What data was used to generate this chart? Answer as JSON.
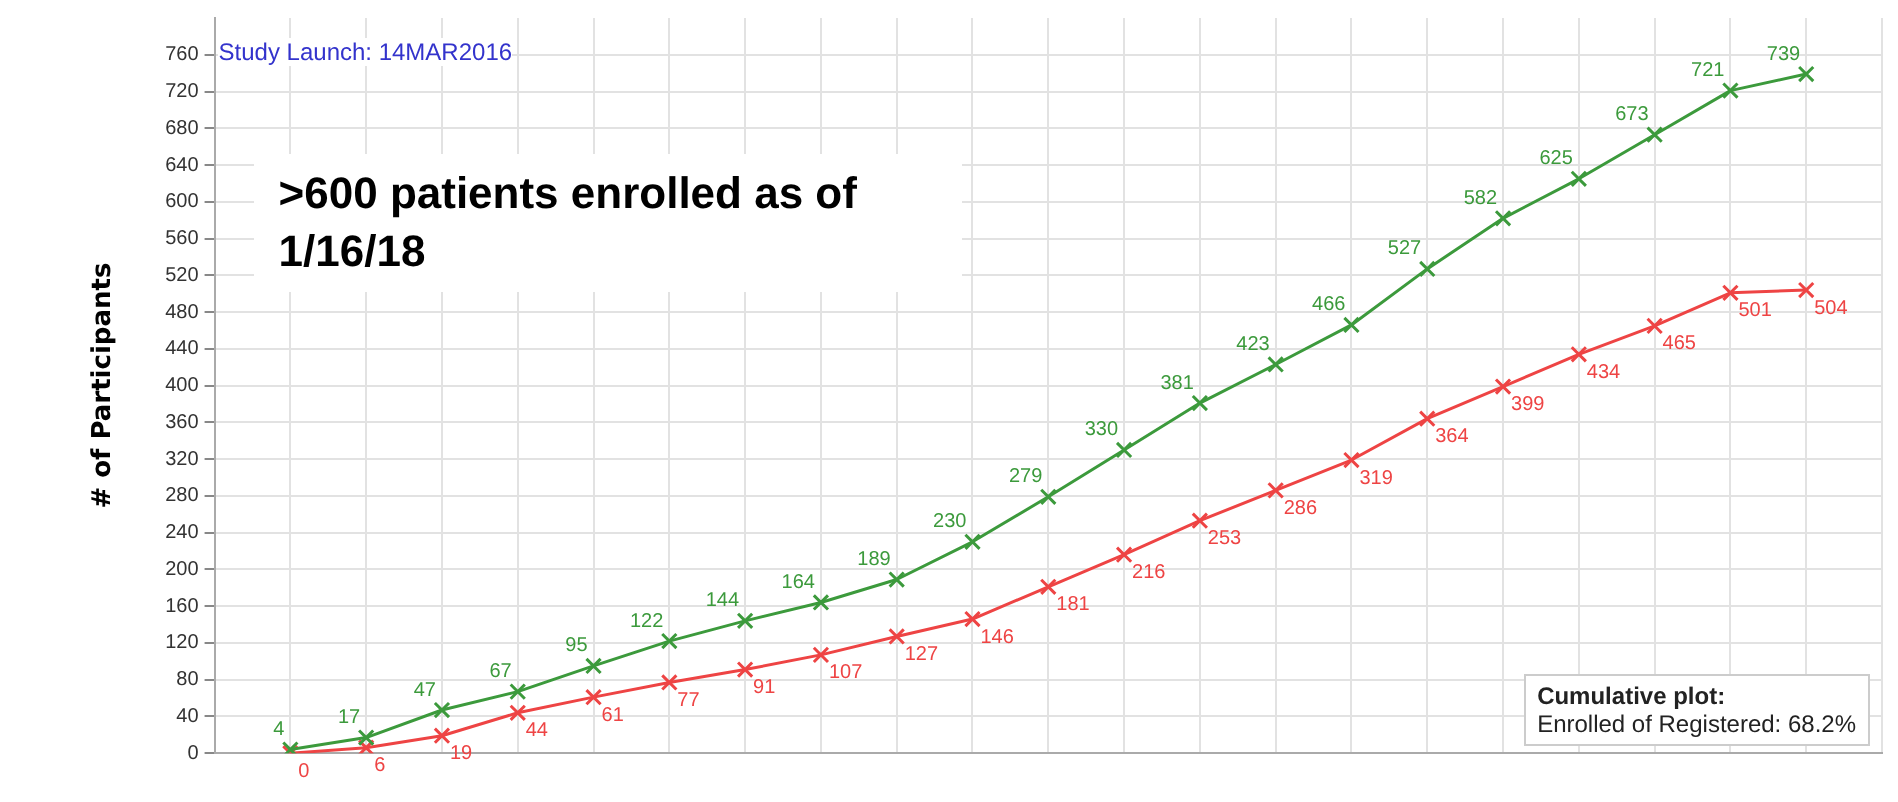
{
  "chart_data": {
    "type": "line",
    "ylabel": "# of Participants",
    "categories": [
      null,
      null,
      null,
      null,
      null,
      null,
      null,
      null,
      null,
      null,
      null,
      null,
      null,
      null,
      null,
      null,
      null,
      null,
      null,
      null,
      null,
      null,
      null
    ],
    "ylim": [
      0,
      800
    ],
    "yticks": [
      0,
      40,
      80,
      120,
      160,
      200,
      240,
      280,
      320,
      360,
      400,
      440,
      480,
      520,
      560,
      600,
      640,
      680,
      720,
      760
    ],
    "grid": true,
    "marker": "cross",
    "data_labels": true,
    "series": [
      {
        "color": "#3c9a3c",
        "values": [
          null,
          4,
          17,
          47,
          67,
          95,
          122,
          144,
          164,
          189,
          230,
          279,
          330,
          381,
          423,
          466,
          527,
          582,
          625,
          673,
          721,
          739,
          null
        ]
      },
      {
        "color": "#ee4444",
        "values": [
          null,
          0,
          6,
          19,
          44,
          61,
          77,
          91,
          107,
          127,
          146,
          181,
          216,
          253,
          286,
          319,
          364,
          399,
          434,
          465,
          501,
          504,
          null
        ]
      }
    ],
    "annotations": [
      "Study Launch: 14MAR2016",
      ">600 patients enrolled as of 1/16/18",
      "Cumulative plot:",
      "Enrolled of Registered: 68.2%"
    ]
  }
}
